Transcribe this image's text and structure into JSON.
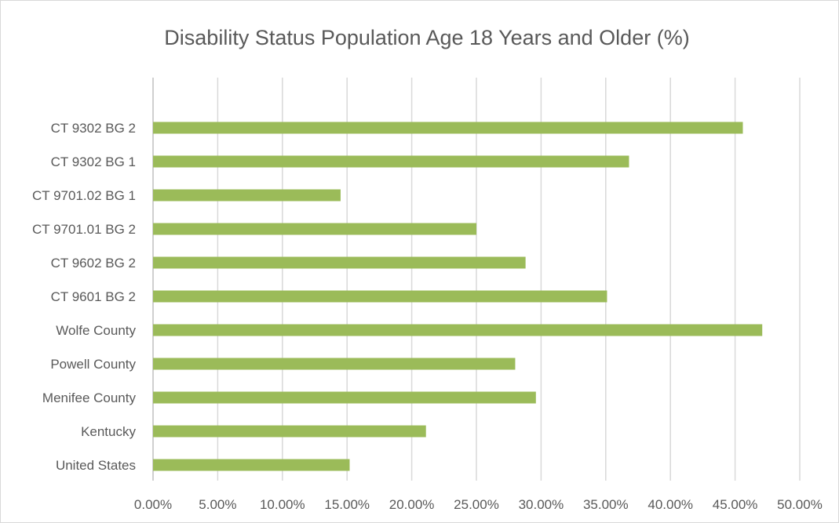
{
  "chart_data": {
    "type": "bar",
    "orientation": "horizontal",
    "title": "Disability Status Population Age 18 Years and Older (%)",
    "categories": [
      "CT 9302 BG 2",
      "CT 9302 BG 1",
      "CT 9701.02 BG 1",
      "CT 9701.01 BG 2",
      "CT 9602 BG 2",
      "CT 9601 BG 2",
      "Wolfe County",
      "Powell County",
      "Menifee County",
      "Kentucky",
      "United States"
    ],
    "values": [
      45.6,
      36.8,
      14.5,
      25.0,
      28.8,
      35.1,
      47.1,
      28.0,
      29.6,
      21.1,
      15.2
    ],
    "xlim": [
      0,
      50
    ],
    "xticks": [
      0,
      5,
      10,
      15,
      20,
      25,
      30,
      35,
      40,
      45,
      50
    ],
    "xtick_labels": [
      "0.00%",
      "5.00%",
      "10.00%",
      "15.00%",
      "20.00%",
      "25.00%",
      "30.00%",
      "35.00%",
      "40.00%",
      "45.00%",
      "50.00%"
    ],
    "grid": "vertical",
    "legend": "none",
    "colors": {
      "bar": "#9bbb59",
      "text": "#595959",
      "grid": "#d9d9d9"
    }
  }
}
